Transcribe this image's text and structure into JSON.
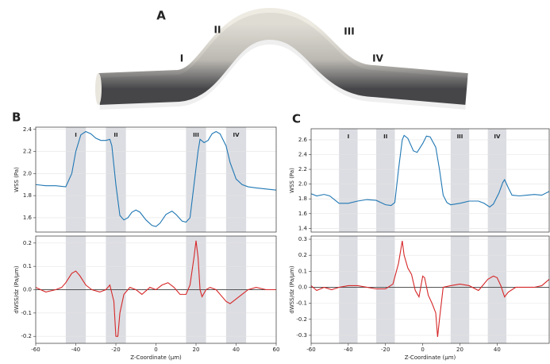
{
  "panel_a": {
    "label": "A",
    "region_labels": [
      "I",
      "II",
      "III",
      "IV"
    ]
  },
  "chart_data": [
    {
      "type": "line",
      "panel_label": "B",
      "ylabel": "WSS (Pa)",
      "xlim": [
        -60,
        60
      ],
      "ylim": [
        1.47,
        2.42
      ],
      "yticks": [
        1.6,
        1.8,
        {
          "value": 2,
          "label": "2.0"
        },
        2.2,
        2.4
      ],
      "grid": true,
      "bands": [
        {
          "label": "I",
          "range": [
            -45,
            -35
          ]
        },
        {
          "label": "II",
          "range": [
            -25,
            -15
          ]
        },
        {
          "label": "III",
          "range": [
            15,
            25
          ]
        },
        {
          "label": "IV",
          "range": [
            35,
            45
          ]
        }
      ],
      "x": [
        -60,
        -55,
        -50,
        -45,
        -42,
        -40,
        -37.5,
        -35,
        -32.5,
        -30,
        -27.5,
        -25,
        -23,
        -22,
        -20,
        -18,
        -16,
        -14,
        -12,
        -10,
        -8,
        -5,
        -2,
        0,
        2,
        5,
        8,
        10,
        13,
        15,
        17,
        19,
        21,
        22,
        24,
        26,
        28,
        30,
        32,
        35,
        37,
        40,
        43,
        46,
        50,
        55,
        60
      ],
      "series": [
        {
          "color": "#1f77b4",
          "values": [
            1.9,
            1.89,
            1.89,
            1.88,
            2.0,
            2.2,
            2.35,
            2.38,
            2.36,
            2.32,
            2.3,
            2.3,
            2.31,
            2.25,
            1.9,
            1.62,
            1.58,
            1.6,
            1.65,
            1.67,
            1.65,
            1.58,
            1.53,
            1.52,
            1.55,
            1.63,
            1.66,
            1.63,
            1.57,
            1.56,
            1.6,
            1.9,
            2.2,
            2.31,
            2.28,
            2.3,
            2.36,
            2.38,
            2.36,
            2.25,
            2.1,
            1.95,
            1.9,
            1.88,
            1.87,
            1.86,
            1.85
          ]
        }
      ]
    },
    {
      "type": "line",
      "ylabel": "dWSS/dz (Pa/µm)",
      "xlabel": "Z-Coordinate (µm)",
      "xlim": [
        -60,
        60
      ],
      "ylim": [
        -0.23,
        0.23
      ],
      "xticks": [
        -60,
        -40,
        -20,
        0,
        20,
        40,
        60
      ],
      "yticks": [
        -0.2,
        -0.1,
        {
          "value": 0,
          "label": "0.0"
        },
        0.1,
        0.2
      ],
      "grid": true,
      "hline": 0,
      "bands": [
        {
          "range": [
            -45,
            -35
          ]
        },
        {
          "range": [
            -25,
            -15
          ]
        },
        {
          "range": [
            15,
            25
          ]
        },
        {
          "range": [
            35,
            45
          ]
        }
      ],
      "x": [
        -60,
        -55,
        -50,
        -47,
        -45,
        -42,
        -40,
        -38,
        -35,
        -32,
        -28,
        -25,
        -23,
        -21,
        -20,
        -19,
        -18,
        -16,
        -13,
        -10,
        -7,
        -3,
        0,
        3,
        6,
        9,
        12,
        15,
        17,
        19,
        20,
        21,
        22,
        23,
        25,
        27,
        30,
        33,
        35,
        37,
        40,
        43,
        46,
        50,
        55,
        60
      ],
      "series": [
        {
          "color": "#d62728",
          "values": [
            0.01,
            -0.01,
            0.0,
            0.01,
            0.03,
            0.07,
            0.08,
            0.06,
            0.02,
            0.0,
            -0.01,
            0.0,
            0.02,
            -0.05,
            -0.2,
            -0.2,
            -0.1,
            -0.02,
            0.01,
            0.0,
            -0.02,
            0.01,
            0.0,
            0.02,
            0.03,
            0.01,
            -0.02,
            -0.02,
            0.02,
            0.14,
            0.21,
            0.14,
            0.0,
            -0.03,
            0.0,
            0.01,
            0.0,
            -0.03,
            -0.05,
            -0.06,
            -0.04,
            -0.02,
            0.0,
            0.01,
            0.0,
            0.0
          ]
        }
      ]
    },
    {
      "type": "line",
      "panel_label": "C",
      "ylabel": "WSS (Pa)",
      "xlim": [
        -60,
        68
      ],
      "ylim": [
        1.35,
        2.75
      ],
      "yticks": [
        1.4,
        1.6,
        1.8,
        {
          "value": 2,
          "label": "2.0"
        },
        2.2,
        2.4,
        2.6
      ],
      "grid": true,
      "bands": [
        {
          "label": "I",
          "range": [
            -45,
            -35
          ]
        },
        {
          "label": "II",
          "range": [
            -25,
            -15
          ]
        },
        {
          "label": "III",
          "range": [
            15,
            25
          ]
        },
        {
          "label": "IV",
          "range": [
            35,
            45
          ]
        }
      ],
      "x": [
        -60,
        -57,
        -53,
        -50,
        -45,
        -40,
        -35,
        -30,
        -25,
        -20,
        -17,
        -15,
        -13,
        -11,
        -10,
        -8,
        -5,
        -3,
        0,
        2,
        4,
        7,
        9,
        11,
        13,
        15,
        20,
        25,
        30,
        33,
        36,
        38,
        41,
        43,
        44,
        46,
        48,
        52,
        56,
        60,
        64,
        68
      ],
      "series": [
        {
          "color": "#1f77b4",
          "values": [
            1.87,
            1.84,
            1.86,
            1.84,
            1.74,
            1.74,
            1.77,
            1.79,
            1.78,
            1.72,
            1.71,
            1.75,
            2.2,
            2.6,
            2.66,
            2.62,
            2.45,
            2.43,
            2.55,
            2.65,
            2.64,
            2.5,
            2.2,
            1.85,
            1.75,
            1.72,
            1.74,
            1.77,
            1.77,
            1.74,
            1.69,
            1.73,
            1.88,
            2.02,
            2.06,
            1.95,
            1.85,
            1.84,
            1.85,
            1.86,
            1.85,
            1.9
          ]
        }
      ]
    },
    {
      "type": "line",
      "ylabel": "dWSS/dz (Pa/µm)",
      "xlabel": "Z-Coordinate (µm)",
      "xlim": [
        -60,
        68
      ],
      "ylim": [
        -0.35,
        0.32
      ],
      "xticks": [
        -60,
        -40,
        -20,
        0,
        20,
        40
      ],
      "yticks": [
        -0.3,
        -0.2,
        -0.1,
        {
          "value": 0,
          "label": "0.0"
        },
        0.1,
        0.2,
        0.3
      ],
      "grid": true,
      "hline": 0,
      "bands": [
        {
          "range": [
            -45,
            -35
          ]
        },
        {
          "range": [
            -25,
            -15
          ]
        },
        {
          "range": [
            15,
            25
          ]
        },
        {
          "range": [
            35,
            45
          ]
        }
      ],
      "x": [
        -60,
        -57,
        -53,
        -49,
        -45,
        -40,
        -35,
        -30,
        -25,
        -20,
        -16,
        -13,
        -11,
        -10,
        -8,
        -6,
        -4,
        -2,
        0,
        1,
        3,
        5,
        7,
        8,
        9,
        11,
        15,
        20,
        25,
        30,
        35,
        38,
        40,
        42,
        44,
        46,
        50,
        55,
        60,
        64,
        68
      ],
      "series": [
        {
          "color": "#d62728",
          "values": [
            0.01,
            -0.02,
            0.0,
            -0.015,
            0.0,
            0.01,
            0.01,
            0.0,
            -0.01,
            -0.01,
            0.02,
            0.15,
            0.29,
            0.2,
            0.12,
            0.08,
            -0.02,
            -0.06,
            0.07,
            0.06,
            -0.05,
            -0.1,
            -0.16,
            -0.31,
            -0.2,
            0.0,
            0.01,
            0.02,
            0.01,
            -0.02,
            0.05,
            0.07,
            0.06,
            0.01,
            -0.06,
            -0.03,
            0.0,
            0.0,
            0.0,
            0.01,
            0.05
          ]
        }
      ]
    }
  ]
}
